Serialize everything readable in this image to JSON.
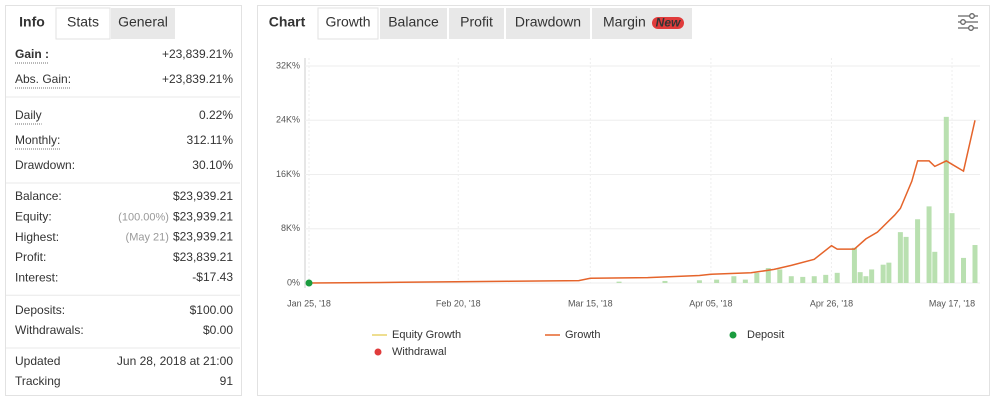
{
  "stats_panel": {
    "title": "Info",
    "tabs": [
      "Stats",
      "General"
    ],
    "groups": [
      [
        {
          "label": "Gain :",
          "value": "+23,839.21%",
          "color": "#2ca02c",
          "bold": true,
          "underlined": true
        },
        {
          "label": "Abs. Gain:",
          "value": "+23,839.21%",
          "color": "#2ca02c",
          "underlined": true
        }
      ],
      [
        {
          "label": "Daily",
          "value": "0.22%",
          "underlined": true
        },
        {
          "label": "Monthly:",
          "value": "312.11%",
          "underlined": true
        },
        {
          "label": "Drawdown:",
          "value": "30.10%"
        }
      ],
      [
        {
          "label": "Balance:",
          "value": "$23,939.21"
        },
        {
          "label": "Equity:",
          "note": "(100.00%)",
          "value": "$23,939.21"
        },
        {
          "label": "Highest:",
          "note": "(May 21)",
          "value": "$23,939.21"
        },
        {
          "label": "Profit:",
          "value": "$23,839.21",
          "color": "#2ca02c"
        },
        {
          "label": "Interest:",
          "value": "-$17.43"
        }
      ],
      [
        {
          "label": "Deposits:",
          "value": "$100.00"
        },
        {
          "label": "Withdrawals:",
          "value": "$0.00"
        }
      ],
      [
        {
          "label": "Updated",
          "value": "Jun 28, 2018 at 21:00"
        },
        {
          "label": "Tracking",
          "value": "91"
        }
      ]
    ]
  },
  "chart_panel": {
    "title": "Chart",
    "tabs": [
      "Growth",
      "Balance",
      "Profit",
      "Drawdown",
      "Margin"
    ],
    "badge": "New"
  },
  "chart_data": {
    "type": "line",
    "xlim": [
      "2018-01-25",
      "2018-05-21"
    ],
    "ylim": [
      0,
      32000
    ],
    "xticks": [
      {
        "value": "2018-01-25",
        "label": "Jan 25, '18"
      },
      {
        "value": "2018-02-20",
        "label": "Feb 20, '18"
      },
      {
        "value": "2018-03-15",
        "label": "Mar 15, '18"
      },
      {
        "value": "2018-04-05",
        "label": "Apr 05, '18"
      },
      {
        "value": "2018-04-26",
        "label": "Apr 26, '18"
      },
      {
        "value": "2018-05-17",
        "label": "May 17, '18"
      }
    ],
    "yticks": [
      {
        "value": 0,
        "label": "0%"
      },
      {
        "value": 8000,
        "label": "8K%"
      },
      {
        "value": 16000,
        "label": "16K%"
      },
      {
        "value": 24000,
        "label": "24K%"
      },
      {
        "value": 32000,
        "label": "32K%"
      }
    ],
    "grid": true,
    "series": [
      {
        "color": "#e5642b",
        "x": [
          "2018-01-25",
          "2018-02-10",
          "2018-03-01",
          "2018-03-13",
          "2018-03-15",
          "2018-03-25",
          "2018-04-03",
          "2018-04-05",
          "2018-04-12",
          "2018-04-16",
          "2018-04-19",
          "2018-04-23",
          "2018-04-26",
          "2018-04-27",
          "2018-04-30",
          "2018-05-02",
          "2018-05-04",
          "2018-05-07",
          "2018-05-08",
          "2018-05-10",
          "2018-05-11",
          "2018-05-13",
          "2018-05-14",
          "2018-05-16",
          "2018-05-17",
          "2018-05-19",
          "2018-05-21"
        ],
        "values": [
          0,
          100,
          250,
          350,
          700,
          800,
          1100,
          1300,
          1500,
          2000,
          2600,
          3500,
          5500,
          5000,
          5000,
          6500,
          7500,
          10000,
          11000,
          15000,
          18000,
          18000,
          17200,
          18000,
          17500,
          16500,
          24000
        ]
      }
    ],
    "bars": {
      "color": "#b9e0b0",
      "x": [
        "2018-03-20",
        "2018-03-28",
        "2018-04-03",
        "2018-04-06",
        "2018-04-09",
        "2018-04-11",
        "2018-04-13",
        "2018-04-15",
        "2018-04-17",
        "2018-04-19",
        "2018-04-21",
        "2018-04-23",
        "2018-04-25",
        "2018-04-27",
        "2018-04-30",
        "2018-05-01",
        "2018-05-02",
        "2018-05-03",
        "2018-05-05",
        "2018-05-06",
        "2018-05-08",
        "2018-05-09",
        "2018-05-11",
        "2018-05-13",
        "2018-05-14",
        "2018-05-16",
        "2018-05-17",
        "2018-05-19",
        "2018-05-21"
      ],
      "values": [
        200,
        300,
        400,
        500,
        1000,
        500,
        1500,
        2200,
        2000,
        1000,
        900,
        1000,
        1200,
        1500,
        5200,
        1600,
        1000,
        2000,
        2700,
        3000,
        7500,
        6800,
        9400,
        11300,
        4600,
        24500,
        10300,
        3700,
        5600
      ]
    },
    "deposits": {
      "color": "#1a9c3e",
      "x": [
        "2018-01-25"
      ],
      "values": [
        0
      ]
    },
    "legend": [
      {
        "label": "Equity Growth",
        "color": "#e8d36a",
        "marker": "line"
      },
      {
        "label": "Growth",
        "color": "#e5642b",
        "marker": "line"
      },
      {
        "label": "Deposit",
        "color": "#1a9c3e",
        "marker": "dot"
      },
      {
        "label": "Withdrawal",
        "color": "#e03b3b",
        "marker": "dot"
      }
    ]
  }
}
